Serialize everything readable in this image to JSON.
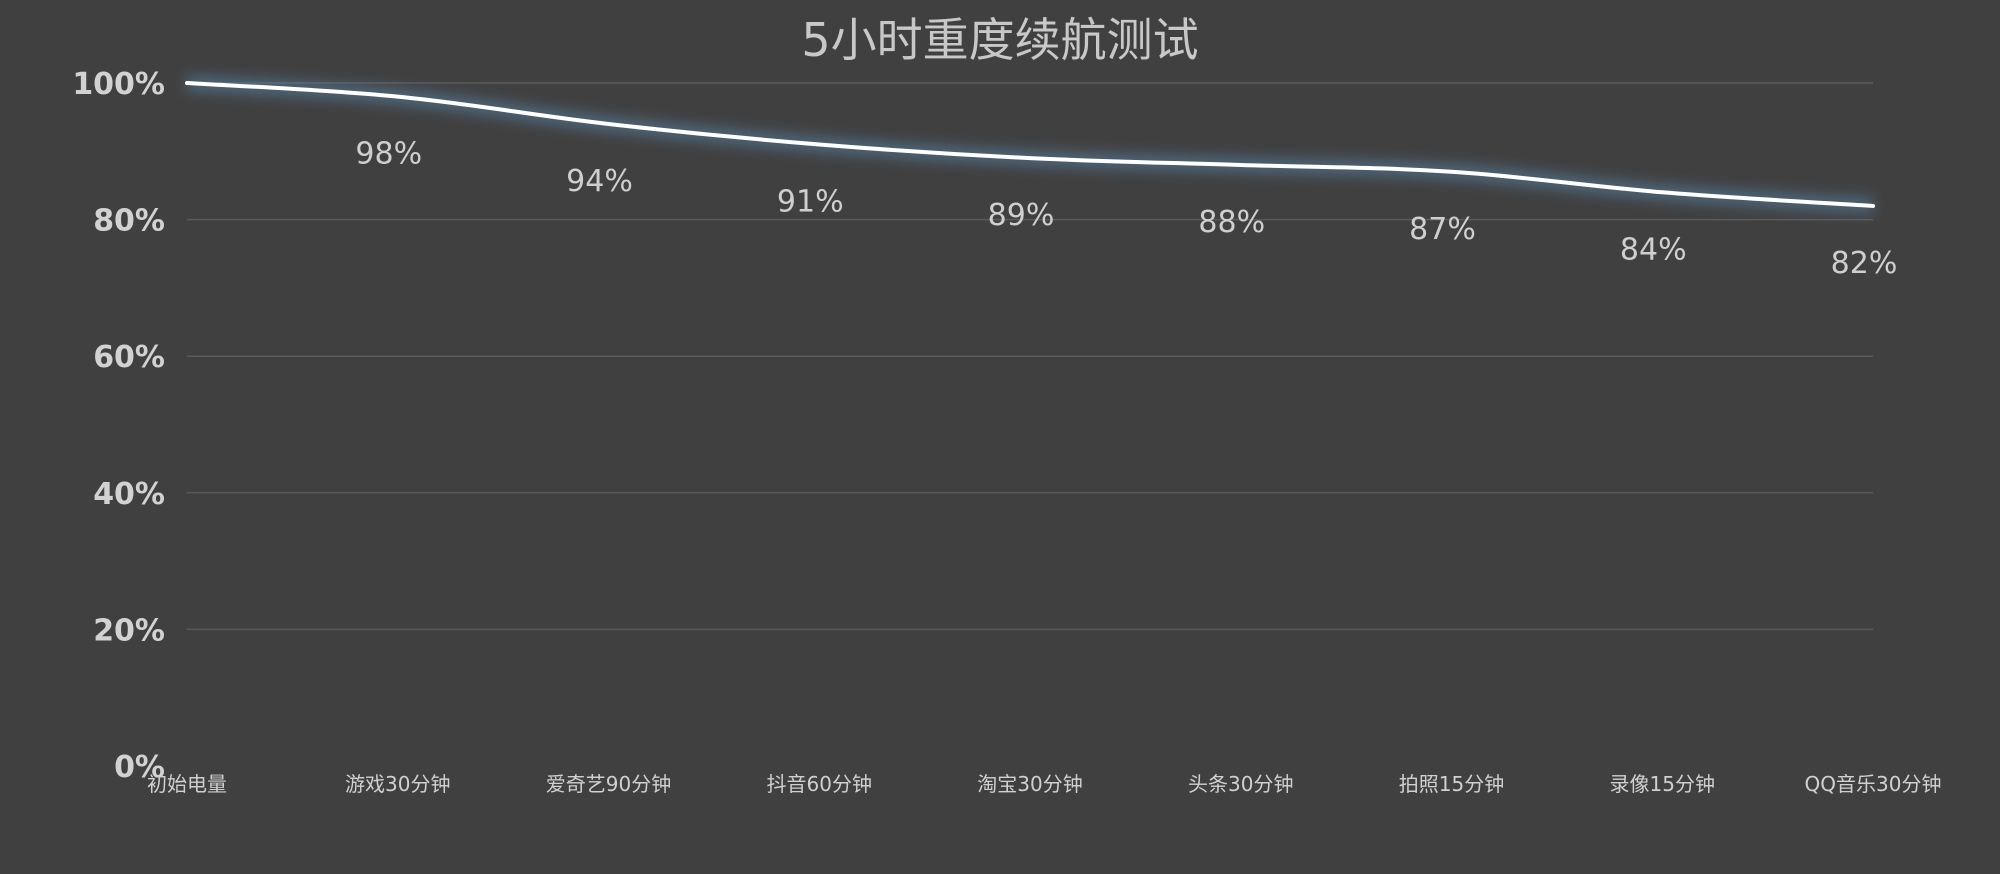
{
  "chart_data": {
    "type": "line",
    "title": "5小时重度续航测试",
    "xlabel": "",
    "ylabel": "",
    "categories": [
      "初始电量",
      "游戏30分钟",
      "爱奇艺90分钟",
      "抖音60分钟",
      "淘宝30分钟",
      "头条30分钟",
      "拍照15分钟",
      "录像15分钟",
      "QQ音乐30分钟"
    ],
    "series": [
      {
        "values": [
          100,
          98,
          94,
          91,
          89,
          88,
          87,
          84,
          82
        ],
        "data_labels": [
          "",
          "98%",
          "94%",
          "91%",
          "89%",
          "88%",
          "87%",
          "84%",
          "82%"
        ]
      }
    ],
    "ylim": [
      0,
      100
    ],
    "y_ticks": [
      "0%",
      "20%",
      "40%",
      "60%",
      "80%",
      "100%"
    ],
    "y_tick_values": [
      0,
      20,
      40,
      60,
      80,
      100
    ],
    "grid": true,
    "legend": "none",
    "colors": {
      "background": "#404040",
      "line": "#ffffff",
      "glow": "#5b8fb9",
      "grid": "#5a5a5a",
      "text": "#c8c8c8"
    }
  }
}
